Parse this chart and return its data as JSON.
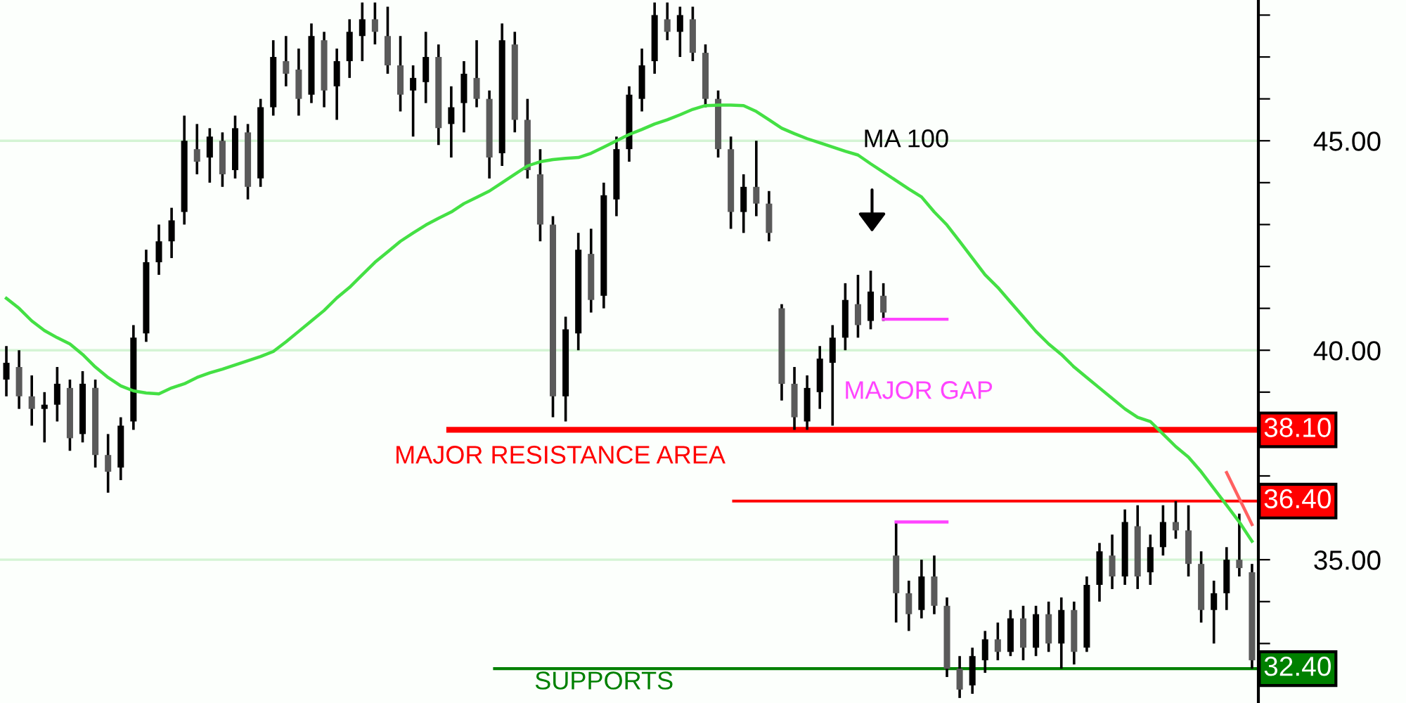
{
  "chart_data": {
    "type": "candlestick",
    "categories": [
      null,
      null,
      null,
      null,
      null,
      null,
      null,
      null,
      null,
      null,
      null,
      null,
      null,
      null,
      null,
      null,
      null,
      null,
      null,
      null,
      null,
      null,
      null,
      null,
      null,
      null,
      null,
      null,
      null,
      null,
      null,
      null,
      null,
      null,
      null,
      null,
      null,
      null,
      null,
      null,
      null,
      null,
      null,
      null,
      null,
      null,
      null,
      null,
      null,
      null,
      null,
      null,
      null,
      null,
      null,
      null,
      null,
      null,
      null,
      null,
      null,
      null,
      null,
      null,
      null,
      null,
      null,
      null,
      null,
      null,
      null,
      null,
      null,
      null,
      null,
      null,
      null,
      null,
      null,
      null,
      null,
      null,
      null,
      null,
      null,
      null,
      null,
      null,
      null,
      null,
      null,
      null,
      null,
      null,
      null,
      null,
      null,
      null,
      null
    ],
    "ohlc": [
      [
        39.3,
        40.1,
        38.9,
        39.7
      ],
      [
        39.6,
        40.0,
        38.6,
        38.9
      ],
      [
        38.9,
        39.4,
        38.2,
        38.6
      ],
      [
        38.6,
        39.0,
        37.8,
        38.7
      ],
      [
        38.7,
        39.6,
        38.3,
        39.2
      ],
      [
        39.1,
        39.3,
        37.6,
        37.9
      ],
      [
        38.0,
        39.5,
        37.8,
        39.2
      ],
      [
        39.1,
        39.3,
        37.2,
        37.5
      ],
      [
        37.5,
        38.0,
        36.6,
        37.1
      ],
      [
        37.2,
        38.4,
        36.9,
        38.2
      ],
      [
        38.3,
        40.6,
        38.1,
        40.3
      ],
      [
        40.4,
        42.4,
        40.2,
        42.1
      ],
      [
        42.1,
        43.0,
        41.8,
        42.6
      ],
      [
        42.6,
        43.4,
        42.2,
        43.1
      ],
      [
        43.3,
        45.6,
        43.0,
        45.0
      ],
      [
        44.8,
        45.4,
        44.2,
        44.5
      ],
      [
        44.6,
        45.3,
        44.0,
        45.1
      ],
      [
        45.0,
        45.2,
        43.9,
        44.2
      ],
      [
        44.3,
        45.6,
        44.1,
        45.3
      ],
      [
        45.2,
        45.4,
        43.6,
        43.9
      ],
      [
        44.1,
        46.0,
        43.9,
        45.8
      ],
      [
        45.8,
        47.4,
        45.6,
        47.0
      ],
      [
        46.9,
        47.5,
        46.3,
        46.6
      ],
      [
        46.7,
        47.2,
        45.6,
        46.0
      ],
      [
        46.1,
        47.8,
        45.9,
        47.5
      ],
      [
        47.4,
        47.6,
        45.8,
        46.2
      ],
      [
        46.3,
        47.2,
        45.5,
        46.9
      ],
      [
        46.9,
        47.9,
        46.5,
        47.6
      ],
      [
        47.5,
        48.3,
        46.9,
        47.9
      ],
      [
        47.9,
        48.3,
        47.3,
        47.6
      ],
      [
        47.5,
        48.2,
        46.6,
        46.8
      ],
      [
        46.8,
        47.5,
        45.7,
        46.1
      ],
      [
        46.2,
        46.8,
        45.1,
        46.5
      ],
      [
        46.4,
        47.6,
        45.9,
        47.0
      ],
      [
        47.0,
        47.3,
        44.9,
        45.3
      ],
      [
        45.4,
        46.3,
        44.6,
        45.8
      ],
      [
        45.9,
        46.9,
        45.2,
        46.6
      ],
      [
        46.5,
        47.4,
        45.8,
        46.0
      ],
      [
        46.0,
        46.2,
        44.1,
        44.6
      ],
      [
        44.7,
        47.8,
        44.4,
        47.4
      ],
      [
        47.3,
        47.6,
        45.2,
        45.5
      ],
      [
        45.5,
        46.0,
        44.1,
        44.3
      ],
      [
        44.2,
        44.8,
        42.6,
        43.0
      ],
      [
        43.0,
        43.2,
        38.4,
        38.9
      ],
      [
        38.9,
        40.8,
        38.3,
        40.5
      ],
      [
        40.4,
        42.8,
        40.0,
        42.4
      ],
      [
        42.3,
        42.9,
        40.9,
        41.2
      ],
      [
        41.3,
        44.0,
        41.0,
        43.7
      ],
      [
        43.6,
        45.1,
        43.2,
        44.8
      ],
      [
        44.8,
        46.3,
        44.5,
        46.1
      ],
      [
        46.0,
        47.2,
        45.7,
        46.8
      ],
      [
        46.9,
        48.3,
        46.6,
        48.0
      ],
      [
        47.9,
        48.3,
        47.4,
        47.6
      ],
      [
        47.6,
        48.2,
        47.0,
        48.0
      ],
      [
        47.9,
        48.2,
        46.9,
        47.1
      ],
      [
        47.1,
        47.3,
        45.8,
        46.0
      ],
      [
        46.0,
        46.2,
        44.6,
        44.8
      ],
      [
        44.8,
        45.1,
        42.9,
        43.3
      ],
      [
        43.3,
        44.2,
        42.8,
        43.9
      ],
      [
        43.9,
        45.0,
        43.2,
        43.5
      ],
      [
        43.5,
        43.8,
        42.6,
        42.8
      ],
      [
        41.0,
        41.1,
        38.8,
        39.2
      ],
      [
        39.2,
        39.6,
        38.1,
        38.4
      ],
      [
        38.3,
        39.4,
        38.1,
        39.1
      ],
      [
        39.0,
        40.1,
        38.6,
        39.8
      ],
      [
        39.7,
        40.6,
        38.2,
        40.3
      ],
      [
        40.3,
        41.6,
        40.0,
        41.2
      ],
      [
        41.1,
        41.8,
        40.3,
        40.6
      ],
      [
        40.7,
        41.9,
        40.5,
        41.4
      ],
      [
        41.3,
        41.6,
        40.7,
        40.9
      ],
      [
        35.1,
        35.9,
        33.5,
        34.2
      ],
      [
        34.2,
        34.5,
        33.3,
        33.7
      ],
      [
        33.8,
        35.0,
        33.6,
        34.6
      ],
      [
        34.6,
        35.1,
        33.7,
        33.9
      ],
      [
        33.9,
        34.1,
        32.2,
        32.4
      ],
      [
        32.4,
        32.7,
        31.7,
        31.9
      ],
      [
        32.0,
        32.9,
        31.8,
        32.7
      ],
      [
        32.6,
        33.3,
        32.3,
        33.1
      ],
      [
        33.1,
        33.5,
        32.6,
        32.8
      ],
      [
        32.8,
        33.8,
        32.7,
        33.6
      ],
      [
        33.6,
        33.9,
        32.6,
        32.9
      ],
      [
        32.9,
        33.9,
        32.7,
        33.7
      ],
      [
        33.7,
        34.0,
        32.8,
        33.0
      ],
      [
        33.0,
        34.1,
        32.4,
        33.8
      ],
      [
        33.8,
        34.0,
        32.5,
        32.8
      ],
      [
        32.9,
        34.6,
        32.8,
        34.4
      ],
      [
        34.4,
        35.4,
        34.0,
        35.2
      ],
      [
        35.1,
        35.6,
        34.3,
        34.6
      ],
      [
        34.6,
        36.2,
        34.4,
        35.9
      ],
      [
        35.8,
        36.3,
        34.3,
        34.6
      ],
      [
        34.7,
        35.6,
        34.4,
        35.3
      ],
      [
        35.3,
        36.3,
        35.1,
        35.9
      ],
      [
        35.9,
        36.4,
        35.5,
        35.7
      ],
      [
        35.7,
        36.3,
        34.6,
        34.9
      ],
      [
        34.9,
        35.2,
        33.5,
        33.8
      ],
      [
        33.8,
        34.5,
        33.0,
        34.2
      ],
      [
        34.2,
        35.3,
        33.8,
        35.0
      ],
      [
        35.0,
        36.1,
        34.6,
        34.8
      ],
      [
        34.7,
        34.9,
        32.4,
        32.6
      ]
    ],
    "ylim": [
      31.58,
      48.36
    ],
    "yticks": [
      {
        "value": 32,
        "label": null
      },
      {
        "value": 33,
        "label": null
      },
      {
        "value": 34,
        "label": null
      },
      {
        "value": 35,
        "label": "35.00"
      },
      {
        "value": 36,
        "label": null
      },
      {
        "value": 37,
        "label": null
      },
      {
        "value": 38,
        "label": null
      },
      {
        "value": 39,
        "label": null
      },
      {
        "value": 40,
        "label": "40.00"
      },
      {
        "value": 41,
        "label": null
      },
      {
        "value": 42,
        "label": null
      },
      {
        "value": 43,
        "label": null
      },
      {
        "value": 44,
        "label": null
      },
      {
        "value": 45,
        "label": "45.00"
      },
      {
        "value": 46,
        "label": null
      },
      {
        "value": 47,
        "label": null
      },
      {
        "value": 48,
        "label": null
      }
    ],
    "tick_labels": "y",
    "grid": "y",
    "series": [
      {
        "type": "line",
        "color": "#44e044",
        "values": [
          41.24,
          41.0,
          40.7,
          40.47,
          40.3,
          40.15,
          39.9,
          39.6,
          39.35,
          39.15,
          39.03,
          38.98,
          38.96,
          39.1,
          39.2,
          39.35,
          39.46,
          39.55,
          39.65,
          39.75,
          39.85,
          39.97,
          40.2,
          40.45,
          40.7,
          40.95,
          41.25,
          41.5,
          41.8,
          42.1,
          42.35,
          42.6,
          42.8,
          42.99,
          43.15,
          43.3,
          43.5,
          43.65,
          43.8,
          44.0,
          44.2,
          44.4,
          44.5,
          44.55,
          44.58,
          44.6,
          44.7,
          44.85,
          45.0,
          45.15,
          45.27,
          45.4,
          45.5,
          45.62,
          45.75,
          45.84,
          45.85,
          45.85,
          45.84,
          45.7,
          45.5,
          45.3,
          45.17,
          45.05,
          44.95,
          44.85,
          44.75,
          44.66,
          44.45,
          44.25,
          44.05,
          43.85,
          43.66,
          43.3,
          42.99,
          42.6,
          42.2,
          41.8,
          41.5,
          41.15,
          40.8,
          40.45,
          40.15,
          39.9,
          39.6,
          39.35,
          39.1,
          38.85,
          38.6,
          38.4,
          38.3,
          38.0,
          37.7,
          37.45,
          37.1,
          36.7,
          36.3,
          35.9,
          35.44
        ]
      },
      {
        "type": "line",
        "color": "#ff6060",
        "values": [
          null,
          null,
          null,
          null,
          null,
          null,
          null,
          null,
          null,
          null,
          null,
          null,
          null,
          null,
          null,
          null,
          null,
          null,
          null,
          null,
          null,
          null,
          null,
          null,
          null,
          null,
          null,
          null,
          null,
          null,
          null,
          null,
          null,
          null,
          null,
          null,
          null,
          null,
          null,
          null,
          null,
          null,
          null,
          null,
          null,
          null,
          null,
          null,
          null,
          null,
          null,
          null,
          null,
          null,
          null,
          null,
          null,
          null,
          null,
          null,
          null,
          null,
          null,
          null,
          null,
          null,
          null,
          null,
          null,
          null,
          null,
          null,
          null,
          null,
          null,
          null,
          null,
          null,
          null,
          null,
          null,
          null,
          null,
          null,
          null,
          null,
          null,
          null,
          null,
          null,
          null,
          null,
          null,
          null,
          null,
          null,
          37.08,
          36.46,
          35.84
        ]
      },
      {
        "type": "line",
        "color": "#ff44ff",
        "values": [
          null,
          null,
          null,
          null,
          null,
          null,
          null,
          null,
          null,
          null,
          null,
          null,
          null,
          null,
          null,
          null,
          null,
          null,
          null,
          null,
          null,
          null,
          null,
          null,
          null,
          null,
          null,
          null,
          null,
          null,
          null,
          null,
          null,
          null,
          null,
          null,
          null,
          null,
          null,
          null,
          null,
          null,
          null,
          null,
          null,
          null,
          null,
          null,
          null,
          null,
          null,
          null,
          null,
          null,
          null,
          null,
          null,
          null,
          null,
          null,
          null,
          null,
          null,
          null,
          null,
          null,
          null,
          null,
          null,
          40.74,
          40.74,
          40.74,
          40.74,
          40.74,
          40.74,
          null,
          null,
          null,
          null,
          null,
          null,
          null,
          null,
          null,
          null,
          null,
          null,
          null,
          null,
          null,
          null,
          null,
          null,
          null,
          null,
          null,
          null,
          null,
          null
        ]
      },
      {
        "type": "line",
        "color": "#ff44ff",
        "values": [
          null,
          null,
          null,
          null,
          null,
          null,
          null,
          null,
          null,
          null,
          null,
          null,
          null,
          null,
          null,
          null,
          null,
          null,
          null,
          null,
          null,
          null,
          null,
          null,
          null,
          null,
          null,
          null,
          null,
          null,
          null,
          null,
          null,
          null,
          null,
          null,
          null,
          null,
          null,
          null,
          null,
          null,
          null,
          null,
          null,
          null,
          null,
          null,
          null,
          null,
          null,
          null,
          null,
          null,
          null,
          null,
          null,
          null,
          null,
          null,
          null,
          null,
          null,
          null,
          null,
          null,
          null,
          null,
          null,
          null,
          35.9,
          35.9,
          35.9,
          35.9,
          35.9,
          null,
          null,
          null,
          null,
          null,
          null,
          null,
          null,
          null,
          null,
          null,
          null,
          null,
          null,
          null,
          null,
          null,
          null,
          null,
          null,
          null,
          null,
          null,
          null
        ]
      }
    ],
    "ref_lines": [
      {
        "axis": "y",
        "value": 38.1,
        "label": "38.10",
        "color": "#ff0000"
      },
      {
        "axis": "y",
        "value": 36.4,
        "label": "36.40",
        "color": "#ff0000"
      },
      {
        "axis": "y",
        "value": 32.4,
        "label": "32.40",
        "color": "#008000"
      }
    ],
    "annotations": [
      "MA 100",
      "MAJOR GAP",
      "MAJOR RESISTANCE AREA",
      "SUPPORTS"
    ]
  }
}
